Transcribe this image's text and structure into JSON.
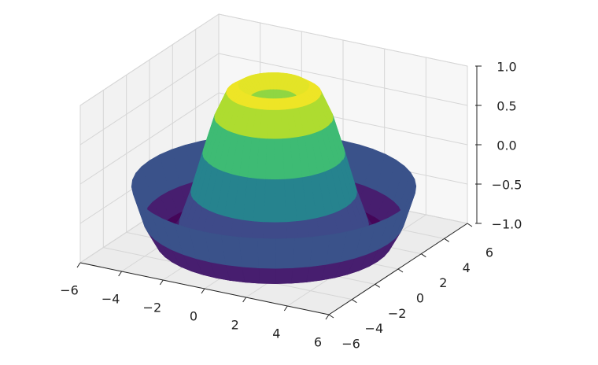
{
  "chart_data": {
    "type": "surface3d",
    "x": [
      0,
      0.5,
      1,
      1.5,
      2,
      2.5,
      3,
      3.5,
      4,
      4.5,
      5,
      5.5,
      6
    ],
    "values": [
      0,
      0.48,
      0.84,
      1.0,
      0.91,
      0.6,
      0.14,
      -0.35,
      -0.76,
      -0.98,
      -0.96,
      -0.71,
      -0.28
    ],
    "colormap": "viridis",
    "grid": true,
    "xlim": [
      -6,
      6
    ],
    "xticks": [
      {
        "value": -6,
        "label": "−6"
      },
      {
        "value": -4,
        "label": "−4"
      },
      {
        "value": -2,
        "label": "−2"
      },
      0,
      2,
      4,
      6
    ],
    "ylim": [
      -6,
      6
    ],
    "yticks": [
      {
        "value": -6,
        "label": "−6"
      },
      {
        "value": -4,
        "label": "−4"
      },
      {
        "value": -2,
        "label": "−2"
      },
      0,
      2,
      4,
      6
    ],
    "zlim": [
      -1,
      1
    ],
    "zticks": [
      {
        "value": -1,
        "label": "−1.0"
      },
      {
        "value": -0.5,
        "label": "−0.5"
      },
      {
        "value": 0,
        "label": "0.0"
      },
      0.5,
      {
        "value": 1,
        "label": "1.0"
      }
    ]
  }
}
